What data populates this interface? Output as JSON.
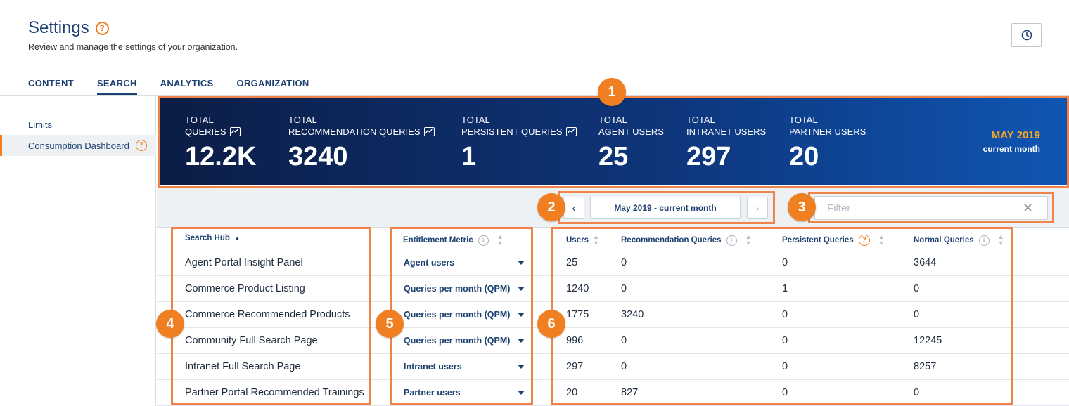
{
  "header": {
    "title": "Settings",
    "help_glyph": "?",
    "subtitle": "Review and manage the settings of your organization.",
    "history_icon": "clock-icon"
  },
  "tabs": [
    {
      "label": "CONTENT",
      "active": false
    },
    {
      "label": "SEARCH",
      "active": true
    },
    {
      "label": "ANALYTICS",
      "active": false
    },
    {
      "label": "ORGANIZATION",
      "active": false
    }
  ],
  "sidebar": {
    "items": [
      {
        "label": "Limits",
        "active": false
      },
      {
        "label": "Consumption Dashboard",
        "active": true
      }
    ]
  },
  "banner": {
    "kpis": [
      {
        "label_line1": "TOTAL",
        "label_line2": "QUERIES",
        "value": "12.2K",
        "has_chart_icon": true
      },
      {
        "label_line1": "TOTAL",
        "label_line2": "RECOMMENDATION QUERIES",
        "value": "3240",
        "has_chart_icon": true
      },
      {
        "label_line1": "TOTAL",
        "label_line2": "PERSISTENT QUERIES",
        "value": "1",
        "has_chart_icon": true
      },
      {
        "label_line1": "TOTAL",
        "label_line2": "AGENT USERS",
        "value": "25",
        "has_chart_icon": false
      },
      {
        "label_line1": "TOTAL",
        "label_line2": "INTRANET USERS",
        "value": "297",
        "has_chart_icon": false
      },
      {
        "label_line1": "TOTAL",
        "label_line2": "PARTNER USERS",
        "value": "20",
        "has_chart_icon": false
      }
    ],
    "month": "MAY 2019",
    "month_caption": "current month"
  },
  "toolbar": {
    "prev_glyph": "‹",
    "next_glyph": "›",
    "period_label": "May 2019 - current month",
    "filter_placeholder": "Filter",
    "clear_glyph": "✕"
  },
  "table": {
    "columns": {
      "search_hub": "Search Hub",
      "entitlement_metric": "Entitlement Metric",
      "users": "Users",
      "recommendation_queries": "Recommendation Queries",
      "persistent_queries": "Persistent Queries",
      "normal_queries": "Normal Queries"
    },
    "info_glyph": "i",
    "rows": [
      {
        "hub": "Agent Portal Insight Panel",
        "metric": "Agent users",
        "users": "25",
        "rec": "0",
        "persistent": "0",
        "normal": "3644"
      },
      {
        "hub": "Commerce Product Listing",
        "metric": "Queries per month (QPM)",
        "users": "1240",
        "rec": "0",
        "persistent": "1",
        "normal": "0"
      },
      {
        "hub": "Commerce Recommended Products",
        "metric": "Queries per month (QPM)",
        "users": "1775",
        "rec": "3240",
        "persistent": "0",
        "normal": "0"
      },
      {
        "hub": "Community Full Search Page",
        "metric": "Queries per month (QPM)",
        "users": "996",
        "rec": "0",
        "persistent": "0",
        "normal": "12245"
      },
      {
        "hub": "Intranet Full Search Page",
        "metric": "Intranet users",
        "users": "297",
        "rec": "0",
        "persistent": "0",
        "normal": "8257"
      },
      {
        "hub": "Partner Portal Recommended Trainings",
        "metric": "Partner users",
        "users": "20",
        "rec": "827",
        "persistent": "0",
        "normal": "0"
      }
    ]
  },
  "callouts": [
    "1",
    "2",
    "3",
    "4",
    "5",
    "6"
  ],
  "colors": {
    "accent": "#f07f22",
    "callout": "#f0834a",
    "navy": "#1c4070",
    "banner_start": "#0b1d45",
    "banner_end": "#0f56b3",
    "month_gold": "#f5a623"
  }
}
